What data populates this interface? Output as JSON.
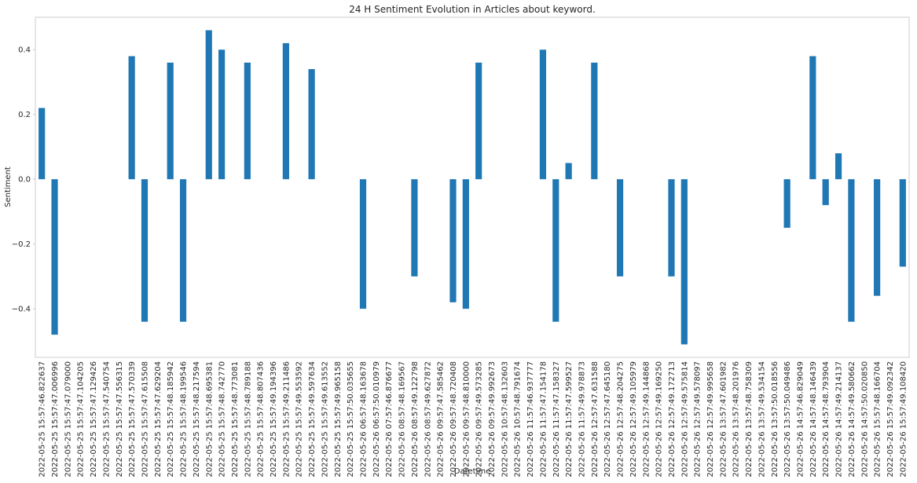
{
  "chart_data": {
    "type": "bar",
    "title": "24 H Sentiment Evolution in Articles about keyword.",
    "xlabel": "Datetime",
    "ylabel": "Sentiment",
    "ylim": [
      -0.55,
      0.5
    ],
    "yticks": [
      0.4,
      0.2,
      0.0,
      -0.2,
      -0.4
    ],
    "ytick_labels": [
      "0.4",
      "0.2",
      "0.0",
      "−0.2",
      "−0.4"
    ],
    "grid": false,
    "bar_color": "#1f77b4",
    "categories": [
      "2022-05-25 15:57:46.822637",
      "2022-05-25 15:57:47.006996",
      "2022-05-25 15:57:47.079000",
      "2022-05-25 15:57:47.104205",
      "2022-05-25 15:57:47.129426",
      "2022-05-25 15:57:47.540754",
      "2022-05-25 15:57:47.556315",
      "2022-05-25 15:57:47.570339",
      "2022-05-25 15:57:47.615508",
      "2022-05-25 15:57:47.629204",
      "2022-05-25 15:57:48.185942",
      "2022-05-25 15:57:48.199546",
      "2022-05-25 15:57:48.217594",
      "2022-05-25 15:57:48.695381",
      "2022-05-25 15:57:48.742770",
      "2022-05-25 15:57:48.773081",
      "2022-05-25 15:57:48.789188",
      "2022-05-25 15:57:48.807436",
      "2022-05-25 15:57:49.194396",
      "2022-05-25 15:57:49.211486",
      "2022-05-25 15:57:49.553592",
      "2022-05-25 15:57:49.597634",
      "2022-05-25 15:57:49.613552",
      "2022-05-25 15:57:49.965158",
      "2022-05-25 15:57:50.035655",
      "2022-05-26 06:57:48.163678",
      "2022-05-26 06:57:50.010979",
      "2022-05-26 07:57:46.876677",
      "2022-05-26 08:57:48.169567",
      "2022-05-26 08:57:49.122798",
      "2022-05-26 08:57:49.627872",
      "2022-05-26 09:57:47.585462",
      "2022-05-26 09:57:48.720408",
      "2022-05-26 09:57:48.810000",
      "2022-05-26 09:57:49.573285",
      "2022-05-26 09:57:49.992673",
      "2022-05-26 10:57:48.132603",
      "2022-05-26 10:57:48.791674",
      "2022-05-26 11:57:46.937777",
      "2022-05-26 11:57:47.154178",
      "2022-05-26 11:57:47.158327",
      "2022-05-26 11:57:47.599527",
      "2022-05-26 11:57:49.978873",
      "2022-05-26 12:57:47.631588",
      "2022-05-26 12:57:47.645180",
      "2022-05-26 12:57:48.204275",
      "2022-05-26 12:57:49.105979",
      "2022-05-26 12:57:49.144868",
      "2022-05-26 12:57:49.169250",
      "2022-05-26 12:57:49.172713",
      "2022-05-26 12:57:49.575814",
      "2022-05-26 12:57:49.578097",
      "2022-05-26 12:57:49.995658",
      "2022-05-26 13:57:47.601982",
      "2022-05-26 13:57:48.201976",
      "2022-05-26 13:57:48.758309",
      "2022-05-26 13:57:49.534154",
      "2022-05-26 13:57:50.018556",
      "2022-05-26 13:57:50.049486",
      "2022-05-26 14:57:46.829049",
      "2022-05-26 14:57:48.146439",
      "2022-05-26 14:57:48.793904",
      "2022-05-26 14:57:49.214137",
      "2022-05-26 14:57:49.580662",
      "2022-05-26 14:57:50.020850",
      "2022-05-26 15:57:48.166704",
      "2022-05-26 15:57:49.092342",
      "2022-05-26 15:57:49.108420"
    ],
    "values": [
      0.22,
      -0.48,
      0,
      0,
      0,
      0,
      0,
      0.38,
      -0.44,
      0,
      0.36,
      -0.44,
      0,
      0.46,
      0.4,
      0,
      0.36,
      0,
      0,
      0.42,
      0,
      0.34,
      0,
      0,
      0,
      -0.4,
      0,
      0,
      0,
      -0.3,
      0,
      0,
      -0.38,
      -0.4,
      0.36,
      0,
      0,
      0,
      0,
      0.4,
      -0.44,
      0.05,
      0,
      0.36,
      0,
      -0.3,
      0,
      0,
      0,
      -0.3,
      -0.51,
      0,
      0,
      0,
      0,
      0,
      0,
      0,
      -0.15,
      0,
      0.38,
      -0.08,
      0.08,
      -0.44,
      0,
      -0.36,
      0,
      -0.27
    ]
  }
}
